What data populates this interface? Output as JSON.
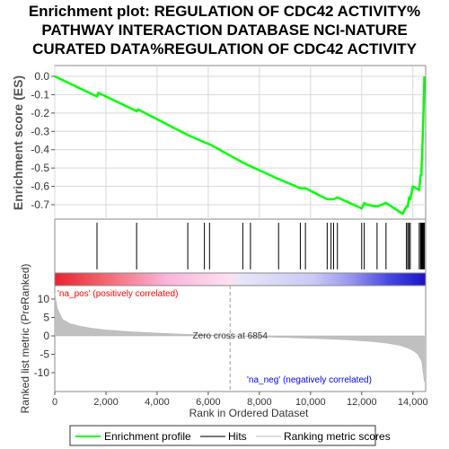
{
  "title_lines": [
    "Enrichment plot: REGULATION OF CDC42 ACTIVITY%",
    "PATHWAY INTERACTION DATABASE NCI-NATURE",
    "CURATED DATA%REGULATION OF CDC42 ACTIVITY"
  ],
  "colors": {
    "enrichment": "#00ff00",
    "hits": "#000000",
    "metric": "#c0c0c0",
    "pos_text": "#ff0000",
    "neg_text": "#0000ff"
  },
  "chart_data": [
    {
      "type": "line",
      "panel": "enrichment",
      "ylabel": "Enrichment score (ES)",
      "xlim": [
        0,
        14500
      ],
      "ylim": [
        -0.8,
        0.0
      ],
      "yticks": [
        "0.0",
        "-0.1",
        "-0.2",
        "-0.3",
        "-0.4",
        "-0.5",
        "-0.6",
        "-0.7"
      ],
      "grid": true,
      "series": [
        {
          "x": [
            0,
            1650,
            1700,
            3200,
            3250,
            5200,
            5850,
            6050,
            7350,
            7650,
            8750,
            9600,
            9800,
            10650,
            10800,
            10900,
            11050,
            12000,
            12100,
            12200,
            12600,
            12950,
            13600,
            13750,
            13800,
            13850,
            13900,
            14000,
            14250,
            14300,
            14330,
            14360,
            14390,
            14420,
            14450
          ],
          "y": [
            0.0,
            -0.11,
            -0.09,
            -0.19,
            -0.18,
            -0.32,
            -0.36,
            -0.37,
            -0.47,
            -0.49,
            -0.56,
            -0.61,
            -0.61,
            -0.67,
            -0.67,
            -0.67,
            -0.66,
            -0.72,
            -0.69,
            -0.7,
            -0.71,
            -0.69,
            -0.75,
            -0.71,
            -0.71,
            -0.66,
            -0.67,
            -0.6,
            -0.62,
            -0.54,
            -0.54,
            -0.44,
            -0.31,
            -0.17,
            0.0
          ]
        }
      ]
    },
    {
      "type": "scatter",
      "panel": "hits",
      "name": "Hits",
      "x": [
        1650,
        3200,
        5200,
        5850,
        6050,
        7350,
        7650,
        8750,
        9600,
        9800,
        10650,
        10800,
        10900,
        11050,
        12000,
        12100,
        12600,
        12950,
        13750,
        13800,
        13850,
        13900,
        14250,
        14300,
        14330,
        14360,
        14390,
        14420,
        14450
      ]
    },
    {
      "type": "area",
      "panel": "ranked_metric",
      "ylabel": "Ranked list metric (PreRanked)",
      "xlabel": "Rank in Ordered Dataset",
      "xlim": [
        0,
        14500
      ],
      "ylim": [
        -13,
        13
      ],
      "xticks": [
        "0",
        "2,000",
        "4,000",
        "6,000",
        "8,000",
        "10,000",
        "12,000",
        "14,000"
      ],
      "yticks": [
        "10",
        "5",
        "0",
        "-5",
        "-10"
      ],
      "x": [
        0,
        100,
        300,
        600,
        1000,
        1500,
        2000,
        3000,
        4000,
        5000,
        6000,
        6854,
        7500,
        8500,
        9500,
        10500,
        11500,
        12500,
        13000,
        13500,
        13800,
        14000,
        14200,
        14350,
        14450
      ],
      "y": [
        11.5,
        7.5,
        4.5,
        3.3,
        2.6,
        2.0,
        1.6,
        1.1,
        0.75,
        0.45,
        0.2,
        0.0,
        -0.15,
        -0.35,
        -0.55,
        -0.8,
        -1.1,
        -1.6,
        -2.0,
        -2.6,
        -3.3,
        -4.0,
        -5.0,
        -7.0,
        -12.5
      ],
      "annotations": {
        "pos": "'na_pos' (positively correlated)",
        "neg": "'na_neg' (negatively correlated)",
        "zero_cross": "Zero cross at 6854"
      },
      "zero_cross": 6854
    }
  ],
  "legend": {
    "items": [
      {
        "label": "Enrichment profile"
      },
      {
        "label": "Hits"
      },
      {
        "label": "Ranking metric scores"
      }
    ]
  }
}
